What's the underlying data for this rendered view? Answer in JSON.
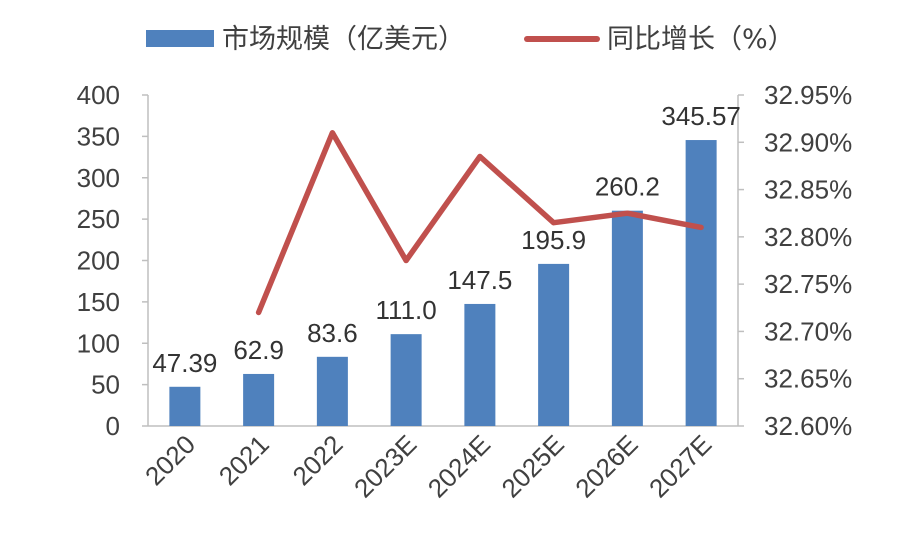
{
  "colors": {
    "bar": "#4f81bd",
    "line": "#c0504d",
    "axis": "#bfbfbf",
    "text": "#404040"
  },
  "chart_data": {
    "type": "bar",
    "categories": [
      "2020",
      "2021",
      "2022",
      "2023E",
      "2024E",
      "2025E",
      "2026E",
      "2027E"
    ],
    "series": [
      {
        "name": "市场规模（亿美元）",
        "type": "bar",
        "axis": "left",
        "values": [
          47.39,
          62.9,
          83.6,
          111.0,
          147.5,
          195.9,
          260.2,
          345.57
        ],
        "labels": [
          "47.39",
          "62.9",
          "83.6",
          "111.0",
          "147.5",
          "195.9",
          "260.2",
          "345.57"
        ]
      },
      {
        "name": "同比增长（%）",
        "type": "line",
        "axis": "right",
        "values": [
          null,
          32.72,
          32.91,
          32.775,
          32.885,
          32.815,
          32.825,
          32.81
        ]
      }
    ],
    "y_left": {
      "min": 0,
      "max": 400,
      "ticks": [
        "0",
        "50",
        "100",
        "150",
        "200",
        "250",
        "300",
        "350",
        "400"
      ]
    },
    "y_right": {
      "min": 32.6,
      "max": 32.95,
      "ticks": [
        "32.60%",
        "32.65%",
        "32.70%",
        "32.75%",
        "32.80%",
        "32.85%",
        "32.90%",
        "32.95%"
      ]
    },
    "legend_position": "top",
    "grid": false
  }
}
